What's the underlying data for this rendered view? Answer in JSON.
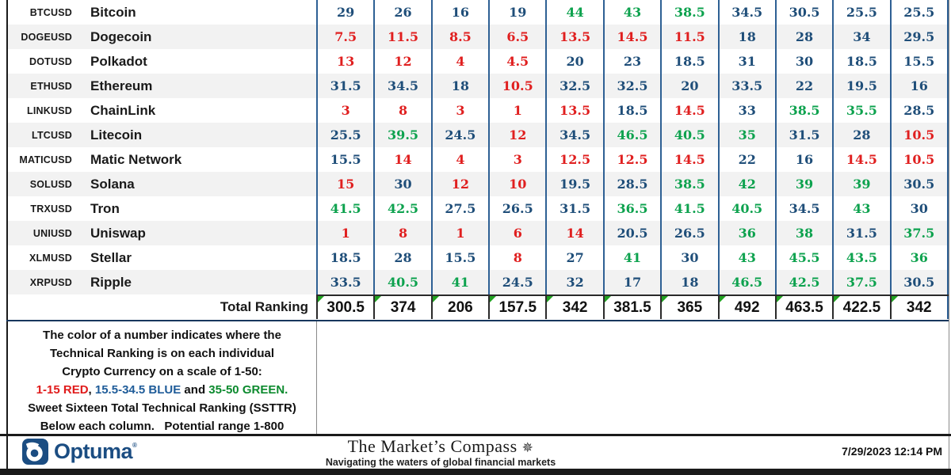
{
  "colors": {
    "num_red": "#e01f1f",
    "num_blue": "#1f4e79",
    "num_green": "#0da24e",
    "grid": "#2e6094",
    "row_alt": "#f2f2f2",
    "brand": "#1b4d82",
    "triangle": "#21a121"
  },
  "thresholds": {
    "red_max": 15,
    "blue_max": 34.5
  },
  "chart_data": {
    "type": "table",
    "rows": [
      {
        "ticker": "BTCUSD",
        "name": "Bitcoin",
        "values": [
          29,
          26,
          16,
          19,
          44,
          43,
          38.5,
          34.5,
          30.5,
          25.5,
          25.5
        ]
      },
      {
        "ticker": "DOGEUSD",
        "name": "Dogecoin",
        "values": [
          7.5,
          11.5,
          8.5,
          6.5,
          13.5,
          14.5,
          11.5,
          18,
          28,
          34,
          29.5
        ]
      },
      {
        "ticker": "DOTUSD",
        "name": "Polkadot",
        "values": [
          13,
          12,
          4,
          4.5,
          20,
          23,
          18.5,
          31,
          30,
          18.5,
          15.5
        ]
      },
      {
        "ticker": "ETHUSD",
        "name": "Ethereum",
        "values": [
          31.5,
          34.5,
          18,
          10.5,
          32.5,
          32.5,
          20,
          33.5,
          22,
          19.5,
          16
        ]
      },
      {
        "ticker": "LINKUSD",
        "name": "ChainLink",
        "values": [
          3,
          8,
          3,
          1,
          13.5,
          18.5,
          14.5,
          33,
          38.5,
          35.5,
          28.5
        ]
      },
      {
        "ticker": "LTCUSD",
        "name": "Litecoin",
        "values": [
          25.5,
          39.5,
          24.5,
          12,
          34.5,
          46.5,
          40.5,
          35,
          31.5,
          28,
          10.5
        ]
      },
      {
        "ticker": "MATICUSD",
        "name": "Matic Network",
        "values": [
          15.5,
          14,
          4,
          3,
          12.5,
          12.5,
          14.5,
          22,
          16,
          14.5,
          10.5
        ]
      },
      {
        "ticker": "SOLUSD",
        "name": "Solana",
        "values": [
          15,
          30,
          12,
          10,
          19.5,
          28.5,
          38.5,
          42,
          39,
          39,
          30.5
        ]
      },
      {
        "ticker": "TRXUSD",
        "name": "Tron",
        "values": [
          41.5,
          42.5,
          27.5,
          26.5,
          31.5,
          36.5,
          41.5,
          40.5,
          34.5,
          43,
          30
        ]
      },
      {
        "ticker": "UNIUSD",
        "name": "Uniswap",
        "values": [
          1,
          8,
          1,
          6,
          14,
          20.5,
          26.5,
          36,
          38,
          31.5,
          37.5
        ]
      },
      {
        "ticker": "XLMUSD",
        "name": "Stellar",
        "values": [
          18.5,
          28,
          15.5,
          8,
          27,
          41,
          30,
          43,
          45.5,
          43.5,
          36
        ]
      },
      {
        "ticker": "XRPUSD",
        "name": "Ripple",
        "values": [
          33.5,
          40.5,
          41,
          24.5,
          32,
          17,
          18,
          46.5,
          42.5,
          37.5,
          30.5
        ]
      }
    ],
    "totals_label": "Total Ranking",
    "totals": [
      300.5,
      374,
      206,
      157.5,
      342,
      381.5,
      365,
      492,
      463.5,
      422.5,
      342
    ],
    "color_rule": {
      "red_range": "1-15",
      "blue_range": "15.5-34.5",
      "green_range": "35-50",
      "scale": "1-50",
      "total_potential_range": "1-800"
    }
  },
  "legend": {
    "line1": "The color of a number indicates where the",
    "line2": "Technical Ranking is on each individual",
    "line3": "Crypto Currency on a scale of 1-50:",
    "line4_segments": [
      {
        "text": "1-15 RED",
        "color": "#e01b1b"
      },
      {
        "text": ", ",
        "color": "#111111"
      },
      {
        "text": "15.5-34.5 BLUE",
        "color": "#1f5c99"
      },
      {
        "text": " and ",
        "color": "#111111"
      },
      {
        "text": "35-50 GREEN.",
        "color": "#0c8a2e"
      }
    ],
    "line5": "Sweet Sixteen Total Technical Ranking (SSTTR)",
    "line6": "Below each column.   Potential range 1-800"
  },
  "footer": {
    "logo_text": "Optuma",
    "logo_mark": "®",
    "brand_title": "The Market’s Compass",
    "compass_glyph": "✵",
    "tagline": "Navigating the waters of global financial markets",
    "timestamp": "7/29/2023 12:14 PM"
  }
}
